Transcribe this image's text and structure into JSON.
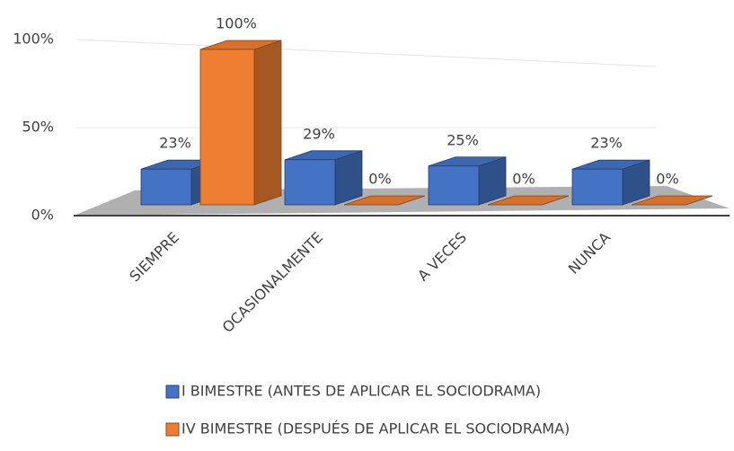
{
  "chart_data": {
    "type": "bar3d",
    "categories": [
      "SIEMPRE",
      "OCASIONALMENTE",
      "A VECES",
      "NUNCA"
    ],
    "series": [
      {
        "name": "I BIMESTRE (ANTES DE APLICAR EL SOCIODRAMA)",
        "color": "#4472c4",
        "values": [
          23,
          29,
          25,
          23
        ],
        "value_labels": [
          "23%",
          "29%",
          "25%",
          "23%"
        ]
      },
      {
        "name": "IV BIMESTRE (DESPUÉS DE APLICAR EL SOCIODRAMA)",
        "color": "#ed7d31",
        "values": [
          100,
          0,
          0,
          0
        ],
        "value_labels": [
          "100%",
          "0%",
          "0%",
          "0%"
        ]
      }
    ],
    "ylim": [
      0,
      100
    ],
    "yticks": [
      {
        "value": 0,
        "label": "0%"
      },
      {
        "value": 50,
        "label": "50%"
      },
      {
        "value": 100,
        "label": "100%"
      }
    ],
    "grid": true,
    "legend": "bottom"
  }
}
